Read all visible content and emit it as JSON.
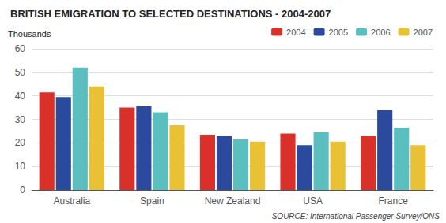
{
  "chart_data": {
    "type": "bar",
    "title": "BRITISH EMIGRATION TO SELECTED DESTINATIONS - 2004-2007",
    "ylabel": "Thousands",
    "annotations": [
      "SOURCE: International Passenger Survey/ONS"
    ],
    "categories": [
      "Australia",
      "Spain",
      "New Zealand",
      "USA",
      "France"
    ],
    "series": [
      {
        "name": "2004",
        "color": "#d9302a",
        "values": [
          41.5,
          35.0,
          23.5,
          24.0,
          23.0
        ]
      },
      {
        "name": "2005",
        "color": "#2b4a9e",
        "values": [
          39.5,
          35.5,
          23.0,
          19.0,
          34.0
        ]
      },
      {
        "name": "2006",
        "color": "#5bbfbf",
        "values": [
          52.0,
          33.0,
          21.5,
          24.5,
          26.5
        ]
      },
      {
        "name": "2007",
        "color": "#e8c234",
        "values": [
          44.0,
          27.5,
          20.5,
          20.5,
          19.0
        ]
      }
    ],
    "ylim": [
      0,
      60
    ],
    "yticks": [
      0,
      10,
      20,
      30,
      40,
      50,
      60
    ],
    "grid": true,
    "legend": "upper right"
  }
}
